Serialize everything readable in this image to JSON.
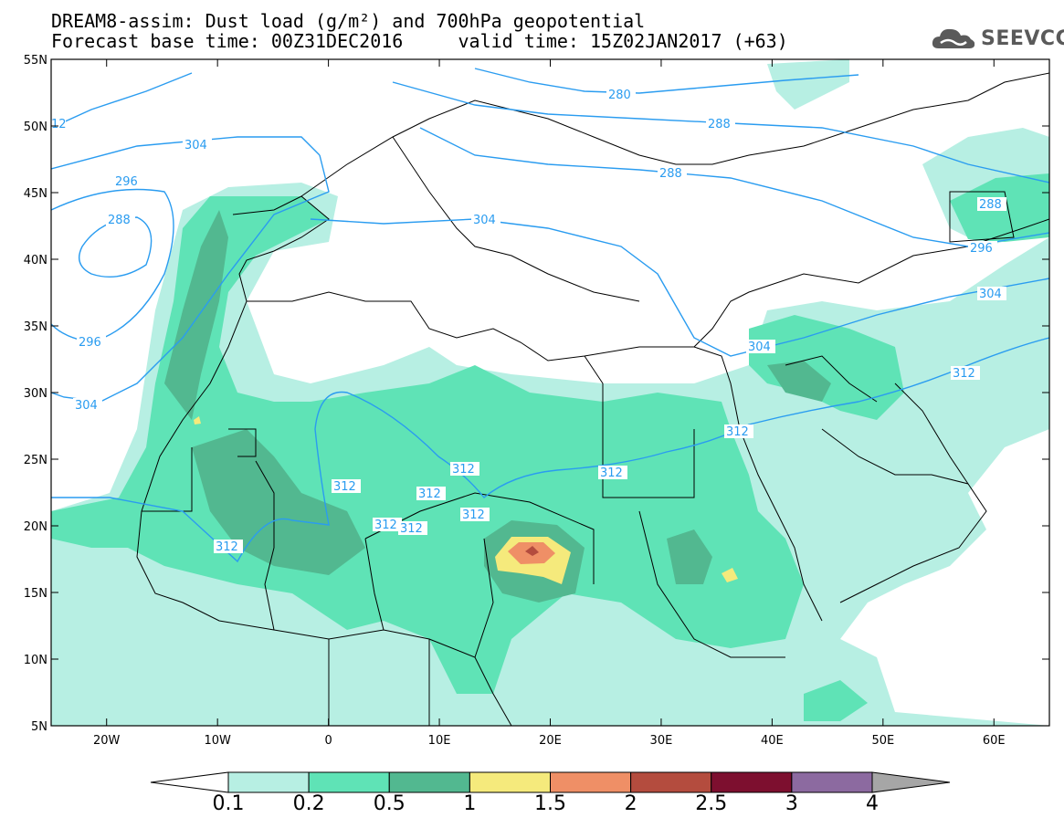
{
  "header": {
    "title_line1": "DREAM8-assim: Dust load (g/m²) and 700hPa geopotential",
    "title_line2": "Forecast base time: 00Z31DEC2016     valid time: 15Z02JAN2017 (+63)",
    "logo_text": "SEEVCCC",
    "logo_icon": "cloud-icon"
  },
  "map": {
    "lon_range": [
      -25,
      65
    ],
    "lat_range": [
      5,
      55
    ],
    "lat_ticks": [
      "55N",
      "50N",
      "45N",
      "40N",
      "35N",
      "30N",
      "25N",
      "20N",
      "15N",
      "10N",
      "5N"
    ],
    "lon_ticks": [
      "20W",
      "10W",
      "0",
      "10E",
      "20E",
      "30E",
      "40E",
      "50E",
      "60E"
    ],
    "contour_color": "#2a9cf0",
    "contour_labels": [
      "12",
      "280",
      "288",
      "304",
      "296",
      "288",
      "296",
      "304",
      "304",
      "288",
      "288",
      "296",
      "304",
      "304",
      "312",
      "312",
      "312",
      "312",
      "312",
      "312",
      "312",
      "312",
      "312",
      "312"
    ]
  },
  "colorbar": {
    "levels": [
      "0.1",
      "0.2",
      "0.5",
      "1",
      "1.5",
      "2",
      "2.5",
      "3",
      "4"
    ],
    "colors": [
      "#b7efe3",
      "#5fe3b6",
      "#52b890",
      "#f5ea7c",
      "#ef8f66",
      "#b44c3e",
      "#7d0f2f",
      "#8c6aa0",
      "#a6a6a6"
    ]
  }
}
